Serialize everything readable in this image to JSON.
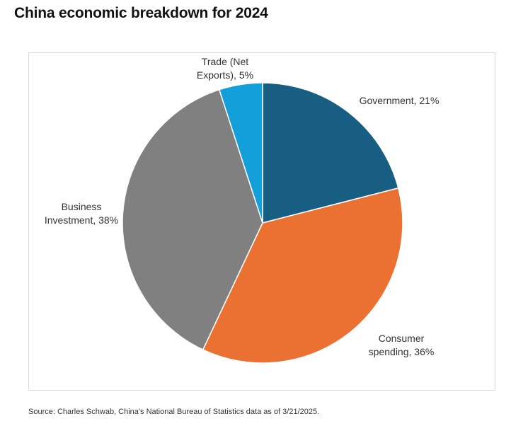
{
  "page": {
    "title": "China economic breakdown for 2024",
    "source": "Source: Charles Schwab, China's National Bureau of Statistics data as of 3/21/2025."
  },
  "chart_data": {
    "type": "pie",
    "title": "China economic breakdown for 2024",
    "start_angle_deg": 0,
    "direction": "clockwise",
    "slices": [
      {
        "name": "Government",
        "value": 21,
        "label_lines": [
          "Government, 21%"
        ],
        "color": "#175e82"
      },
      {
        "name": "Consumer spending",
        "value": 36,
        "label_lines": [
          "Consumer",
          "spending, 36%"
        ],
        "color": "#eb7133"
      },
      {
        "name": "Business Investment",
        "value": 38,
        "label_lines": [
          "Business",
          "Investment, 38%"
        ],
        "color": "#808080"
      },
      {
        "name": "Trade (Net Exports)",
        "value": 5,
        "label_lines": [
          "Trade (Net",
          "Exports), 5%"
        ],
        "color": "#139fda"
      }
    ]
  }
}
